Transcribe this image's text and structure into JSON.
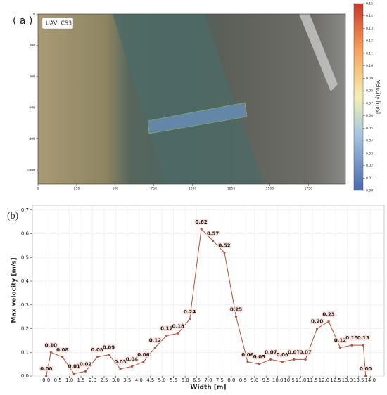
{
  "chart_data": [
    {
      "type": "image",
      "label": "( a )",
      "annotation": "UAV, CS3",
      "xlim": [
        0,
        1990
      ],
      "xticks": [
        0,
        250,
        500,
        750,
        1000,
        1250,
        1500,
        1750
      ],
      "ylim": [
        1090,
        0
      ],
      "yticks": [
        0,
        200,
        400,
        600,
        800,
        1000
      ],
      "colorbar": {
        "label": "Velocity [m/s]",
        "lim": [
          0,
          0.15
        ],
        "ticks": [
          {
            "value": 0,
            "label": "0.00"
          },
          {
            "value": 0.01,
            "label": "0.01"
          },
          {
            "value": 0.02,
            "label": "0.02"
          },
          {
            "value": 0.03,
            "label": "0.03"
          },
          {
            "value": 0.04,
            "label": "0.04"
          },
          {
            "value": 0.05,
            "label": "0.05"
          },
          {
            "value": 0.06,
            "label": "0.06"
          },
          {
            "value": 0.07,
            "label": "0.07"
          },
          {
            "value": 0.08,
            "label": "0.08"
          },
          {
            "value": 0.09,
            "label": "0.09"
          },
          {
            "value": 0.1,
            "label": "0.10"
          },
          {
            "value": 0.11,
            "label": "0.11"
          },
          {
            "value": 0.12,
            "label": "0.12"
          },
          {
            "value": 0.13,
            "label": "0.13"
          },
          {
            "value": 0.14,
            "label": "0.14"
          },
          {
            "value": 0.15,
            "label": "0.15"
          }
        ]
      }
    },
    {
      "type": "line",
      "label": "(b)",
      "x_label": "Width [m]",
      "y_label": "Max velocity [m/s]",
      "color": "#b5533c",
      "grid": true,
      "x": [
        0,
        0.2,
        0.7,
        1.2,
        1.7,
        2.2,
        2.7,
        3.2,
        3.7,
        4.2,
        4.7,
        5.2,
        5.7,
        6.2,
        6.7,
        7.2,
        7.7,
        8.2,
        8.7,
        9.2,
        9.7,
        10.2,
        10.7,
        11.2,
        11.7,
        12.2,
        12.7,
        13.2,
        13.7,
        13.8
      ],
      "values": [
        0,
        0.1,
        0.08,
        0.01,
        0.02,
        0.08,
        0.09,
        0.03,
        0.04,
        0.06,
        0.12,
        0.17,
        0.18,
        0.24,
        0.62,
        0.57,
        0.52,
        0.25,
        0.06,
        0.05,
        0.07,
        0.06,
        0.07,
        0.07,
        0.2,
        0.23,
        0.12,
        0.13,
        0.13,
        0
      ],
      "value_labels": [
        "0.00",
        "0.10",
        "0.08",
        "0.01",
        "0.02",
        "0.08",
        "0.09",
        "0.03",
        "0.04",
        "0.06",
        "0.12",
        "0.17",
        "0.18",
        "0.24",
        "0.62",
        "0.57",
        "0.52",
        "0.25",
        "0.06",
        "0.05",
        "0.07",
        "0.06",
        "0.07",
        "0.07",
        "0.20",
        "0.23",
        "0.12",
        "0.13",
        "0.13",
        "0.00"
      ],
      "xlim": [
        -0.6,
        14.6
      ],
      "xticks": [
        {
          "value": 0,
          "label": "0.0"
        },
        0.5,
        {
          "value": 1,
          "label": "1.0"
        },
        1.5,
        {
          "value": 2,
          "label": "2.0"
        },
        2.5,
        {
          "value": 3,
          "label": "3.0"
        },
        3.5,
        {
          "value": 4,
          "label": "4.0"
        },
        4.5,
        {
          "value": 5,
          "label": "5.0"
        },
        5.5,
        {
          "value": 6,
          "label": "6.0"
        },
        6.5,
        {
          "value": 7,
          "label": "7.0"
        },
        7.5,
        {
          "value": 8,
          "label": "8.0"
        },
        8.5,
        {
          "value": 9,
          "label": "9.0"
        },
        9.5,
        {
          "value": 10,
          "label": "10.0"
        },
        10.5,
        {
          "value": 11,
          "label": "11.0"
        },
        11.5,
        {
          "value": 12,
          "label": "12.0"
        },
        12.5,
        {
          "value": 13,
          "label": "13.0"
        },
        13.5,
        {
          "value": 14,
          "label": "14.0"
        }
      ],
      "ylim": [
        0,
        0.72
      ],
      "yticks": [
        {
          "value": 0,
          "label": "0.0"
        },
        0.1,
        0.2,
        0.3,
        0.4,
        0.5,
        0.6,
        0.7
      ]
    }
  ]
}
